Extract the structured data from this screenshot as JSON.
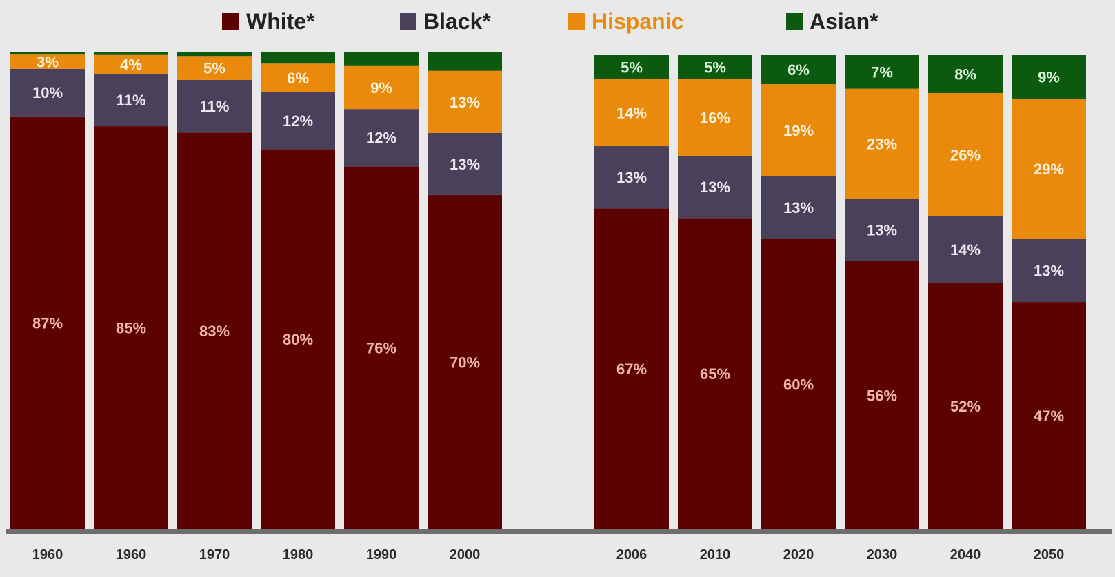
{
  "chart_data": {
    "type": "bar",
    "stacked": true,
    "percent_stacked": true,
    "legend_position": "top",
    "grid": false,
    "ylim": [
      0,
      100
    ],
    "categories": [
      "1960",
      "1960",
      "1970",
      "1980",
      "1990",
      "2000",
      "2006",
      "2010",
      "2020",
      "2030",
      "2040",
      "2050"
    ],
    "groups": [
      [
        0,
        5
      ],
      [
        6,
        11
      ]
    ],
    "series": [
      {
        "name": "White*",
        "color": "#5c0202",
        "label_color": "#f2b8a6",
        "values": [
          87,
          85,
          83,
          80,
          76,
          70,
          67,
          65,
          60,
          56,
          52,
          47
        ],
        "labels": [
          "87%",
          "85%",
          "83%",
          "80%",
          "76%",
          "70%",
          "67%",
          "65%",
          "60%",
          "56%",
          "52%",
          "47%"
        ]
      },
      {
        "name": "Black*",
        "color": "#4a4059",
        "label_color": "#e9e9ef",
        "values": [
          10,
          11,
          11,
          12,
          12,
          13,
          13,
          13,
          13,
          13,
          14,
          13
        ],
        "labels": [
          "10%",
          "11%",
          "11%",
          "12%",
          "12%",
          "13%",
          "13%",
          "13%",
          "13%",
          "13%",
          "14%",
          "13%"
        ]
      },
      {
        "name": "Hispanic",
        "color": "#ea8a0c",
        "label_color": "#fff2dd",
        "values": [
          3,
          4,
          5,
          6,
          9,
          13,
          14,
          16,
          19,
          23,
          26,
          29
        ],
        "labels": [
          "3%",
          "4%",
          "5%",
          "6%",
          "9%",
          "13%",
          "14%",
          "16%",
          "19%",
          "23%",
          "26%",
          "29%"
        ]
      },
      {
        "name": "Asian*",
        "color": "#0b5a10",
        "label_color": "#d8f0d8",
        "values": [
          0.6,
          0.7,
          0.9,
          2.5,
          3,
          4,
          5,
          5,
          6,
          7,
          8,
          9
        ],
        "labels": [
          "",
          "",
          "",
          "",
          "",
          "",
          "5%",
          "5%",
          "6%",
          "7%",
          "8%",
          "9%"
        ]
      }
    ]
  }
}
